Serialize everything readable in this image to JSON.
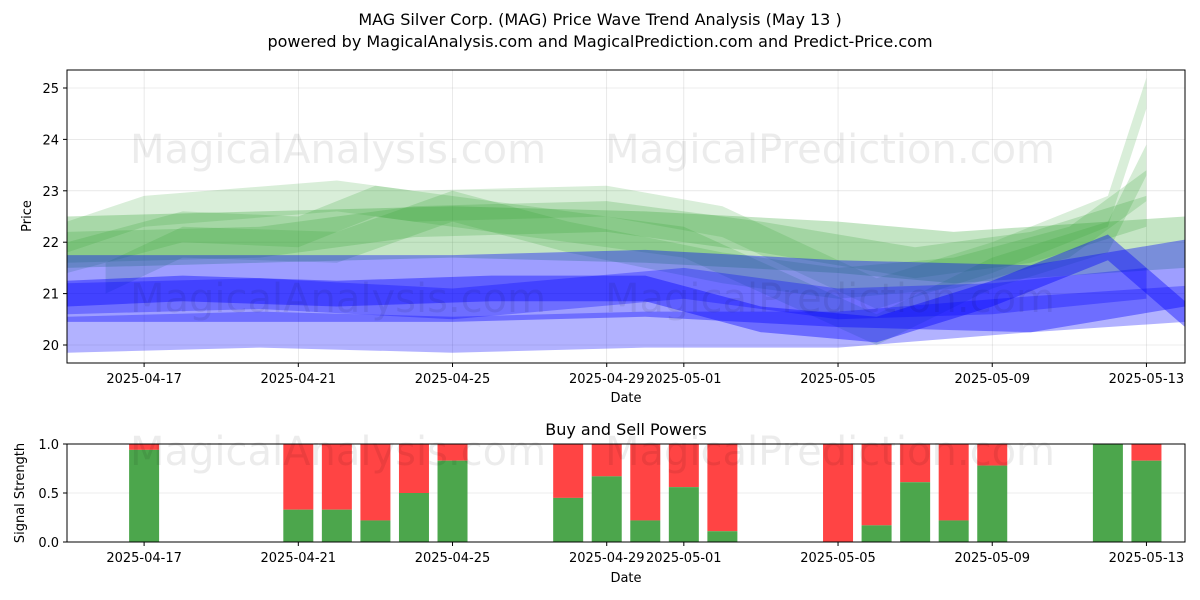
{
  "title": "MAG Silver Corp. (MAG) Price Wave Trend Analysis (May 13 )",
  "subtitle": "powered by MagicalAnalysis.com and MagicalPrediction.com and Predict-Price.com",
  "watermarks": [
    "MagicalAnalysis.com",
    "MagicalPrediction.com"
  ],
  "colors": {
    "buy": "#2ca02c",
    "sell": "#ff0000",
    "wave_green": "#2ca02c",
    "wave_blue": "#0000ff"
  },
  "chart_data": [
    {
      "type": "area",
      "xlabel": "Date",
      "ylabel": "Price",
      "x_ticks": [
        "2025-04-17",
        "2025-04-21",
        "2025-04-25",
        "2025-04-29",
        "2025-05-01",
        "2025-05-05",
        "2025-05-09",
        "2025-05-13"
      ],
      "x_range": [
        "2025-04-15",
        "2025-05-14"
      ],
      "y_ticks": [
        20,
        21,
        22,
        23,
        24,
        25
      ],
      "ylim": [
        19.65,
        25.35
      ],
      "grid": true,
      "series": [
        {
          "color": "#2ca02c",
          "x": [
            "2025-04-15",
            "2025-04-20",
            "2025-04-25",
            "2025-04-30",
            "2025-05-05",
            "2025-05-08",
            "2025-05-12",
            "2025-05-14"
          ],
          "y": [
            22.0,
            22.1,
            22.2,
            22.1,
            21.9,
            21.7,
            21.9,
            22.0
          ],
          "band": 0.5,
          "opacity": 0.28
        },
        {
          "color": "#2ca02c",
          "x": [
            "2025-04-15",
            "2025-04-17",
            "2025-04-22",
            "2025-04-24",
            "2025-04-29",
            "2025-05-02",
            "2025-05-06",
            "2025-05-09",
            "2025-05-12",
            "2025-05-13"
          ],
          "y": [
            22.1,
            22.6,
            22.9,
            22.7,
            22.8,
            22.4,
            21.0,
            21.7,
            22.6,
            24.9
          ],
          "band": 0.3,
          "opacity": 0.18
        },
        {
          "color": "#2ca02c",
          "x": [
            "2025-04-15",
            "2025-04-18",
            "2025-04-21",
            "2025-04-23",
            "2025-04-26",
            "2025-04-29",
            "2025-05-01",
            "2025-05-06",
            "2025-05-09",
            "2025-05-12",
            "2025-05-13"
          ],
          "y": [
            21.7,
            22.3,
            22.2,
            22.8,
            22.5,
            22.2,
            22.0,
            20.3,
            21.4,
            22.1,
            23.6
          ],
          "band": 0.3,
          "opacity": 0.2
        },
        {
          "color": "#2ca02c",
          "x": [
            "2025-04-16",
            "2025-04-18",
            "2025-04-22",
            "2025-04-25",
            "2025-04-28",
            "2025-05-02",
            "2025-05-05",
            "2025-05-08",
            "2025-05-11",
            "2025-05-13"
          ],
          "y": [
            21.3,
            22.0,
            21.9,
            22.7,
            22.1,
            21.5,
            21.2,
            21.4,
            22.0,
            23.1
          ],
          "band": 0.3,
          "opacity": 0.2
        },
        {
          "color": "#2ca02c",
          "x": [
            "2025-04-15",
            "2025-04-20",
            "2025-04-24",
            "2025-04-29",
            "2025-05-03",
            "2025-05-07",
            "2025-05-10",
            "2025-05-13"
          ],
          "y": [
            21.9,
            22.0,
            22.4,
            22.5,
            22.1,
            21.6,
            21.9,
            22.6
          ],
          "band": 0.3,
          "opacity": 0.22
        },
        {
          "color": "#0000ff",
          "x": [
            "2025-04-15",
            "2025-04-20",
            "2025-04-25",
            "2025-04-30",
            "2025-05-05",
            "2025-05-10",
            "2025-05-14"
          ],
          "y": [
            21.1,
            21.1,
            21.1,
            21.2,
            21.0,
            20.9,
            21.4
          ],
          "band": 0.65,
          "opacity": 0.38
        },
        {
          "color": "#0000ff",
          "x": [
            "2025-04-15",
            "2025-04-20",
            "2025-04-25",
            "2025-04-30",
            "2025-05-05",
            "2025-05-10",
            "2025-05-14"
          ],
          "y": [
            20.2,
            20.3,
            20.2,
            20.3,
            20.3,
            20.6,
            20.8
          ],
          "band": 0.35,
          "opacity": 0.3
        },
        {
          "color": "#0000ff",
          "x": [
            "2025-04-15",
            "2025-04-18",
            "2025-04-22",
            "2025-04-26",
            "2025-04-30",
            "2025-05-03",
            "2025-05-06",
            "2025-05-09",
            "2025-05-12",
            "2025-05-14"
          ],
          "y": [
            21.0,
            21.1,
            21.0,
            21.1,
            21.1,
            20.5,
            20.3,
            21.0,
            21.9,
            20.6
          ],
          "band": 0.25,
          "opacity": 0.4
        },
        {
          "color": "#0000ff",
          "x": [
            "2025-04-15",
            "2025-04-20",
            "2025-04-25",
            "2025-05-01",
            "2025-05-05",
            "2025-05-09",
            "2025-05-13"
          ],
          "y": [
            20.9,
            21.0,
            20.8,
            21.2,
            20.8,
            20.9,
            21.2
          ],
          "band": 0.3,
          "opacity": 0.3
        }
      ]
    },
    {
      "type": "bar",
      "title": "Buy and Sell Powers",
      "xlabel": "Date",
      "ylabel": "Signal Strength",
      "ylim": [
        0,
        1
      ],
      "y_ticks": [
        "0.0",
        "0.5",
        "1.0"
      ],
      "x_ticks": [
        "2025-04-17",
        "2025-04-21",
        "2025-04-25",
        "2025-04-29",
        "2025-05-01",
        "2025-05-05",
        "2025-05-09",
        "2025-05-13"
      ],
      "x_range": [
        "2025-04-15",
        "2025-05-14"
      ],
      "grid": true,
      "series": [
        {
          "name": "Buy",
          "color": "#4ca64c"
        },
        {
          "name": "Sell",
          "color": "#ff4444"
        }
      ],
      "categories": [
        "2025-04-17",
        "2025-04-21",
        "2025-04-22",
        "2025-04-23",
        "2025-04-24",
        "2025-04-25",
        "2025-04-28",
        "2025-04-29",
        "2025-04-30",
        "2025-05-01",
        "2025-05-02",
        "2025-05-05",
        "2025-05-06",
        "2025-05-07",
        "2025-05-08",
        "2025-05-09",
        "2025-05-12",
        "2025-05-13"
      ],
      "buy": [
        0.94,
        0.33,
        0.33,
        0.22,
        0.5,
        0.83,
        0.45,
        0.67,
        0.22,
        0.56,
        0.11,
        0.0,
        0.17,
        0.61,
        0.22,
        0.78,
        1.0,
        0.83
      ]
    }
  ]
}
